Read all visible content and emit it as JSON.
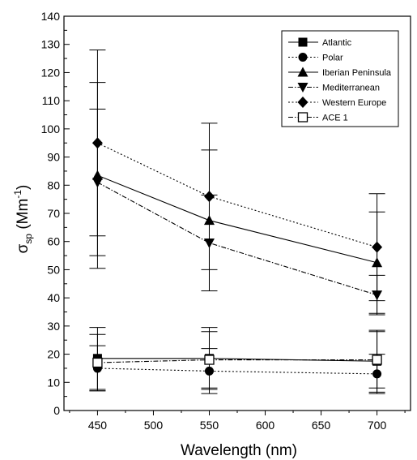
{
  "chart_data": {
    "type": "line",
    "xlabel": "Wavelength (nm)",
    "ylabel": {
      "base": "σ",
      "sub": "sp",
      "mid": " (Mm",
      "sup": "-1",
      "end": ")"
    },
    "xlim": [
      420,
      730
    ],
    "ylim": [
      0,
      140
    ],
    "x_ticks": [
      450,
      500,
      550,
      600,
      650,
      700
    ],
    "y_ticks": [
      0,
      10,
      20,
      30,
      40,
      50,
      60,
      70,
      80,
      90,
      100,
      110,
      120,
      130,
      140
    ],
    "grid": false,
    "legend_position": "top-right",
    "series": [
      {
        "name": "Atlantic",
        "marker": "square",
        "line": "solid",
        "points": [
          {
            "x": 450,
            "y": 18.5,
            "err": 11
          },
          {
            "x": 550,
            "y": 18.5,
            "err": 11
          },
          {
            "x": 700,
            "y": 17.5,
            "err": 11
          }
        ]
      },
      {
        "name": "Polar",
        "marker": "circle",
        "line": "dotted",
        "points": [
          {
            "x": 450,
            "y": 15,
            "err": 8
          },
          {
            "x": 550,
            "y": 14,
            "err": 8
          },
          {
            "x": 700,
            "y": 13,
            "err": 7
          }
        ]
      },
      {
        "name": "Iberian Peninsula",
        "marker": "triangle-up",
        "line": "solid",
        "points": [
          {
            "x": 450,
            "y": 83.5,
            "err": 33
          },
          {
            "x": 550,
            "y": 67.5,
            "err": 25
          },
          {
            "x": 700,
            "y": 52.5,
            "err": 18
          }
        ]
      },
      {
        "name": "Mediterranean",
        "marker": "triangle-down",
        "line": "dashdot",
        "points": [
          {
            "x": 450,
            "y": 81,
            "err": 26
          },
          {
            "x": 550,
            "y": 59.5,
            "err": 17
          },
          {
            "x": 700,
            "y": 41,
            "err": 7
          }
        ]
      },
      {
        "name": "Western Europe",
        "marker": "diamond",
        "line": "dotted",
        "points": [
          {
            "x": 450,
            "y": 95,
            "err": 33
          },
          {
            "x": 550,
            "y": 76,
            "err": 26
          },
          {
            "x": 700,
            "y": 58,
            "err": 19
          }
        ]
      },
      {
        "name": "ACE 1",
        "marker": "square-open",
        "line": "dashdot",
        "points": [
          {
            "x": 450,
            "y": 17,
            "err": 10
          },
          {
            "x": 550,
            "y": 18,
            "err": 10
          },
          {
            "x": 700,
            "y": 18,
            "err": 10
          }
        ]
      }
    ]
  }
}
